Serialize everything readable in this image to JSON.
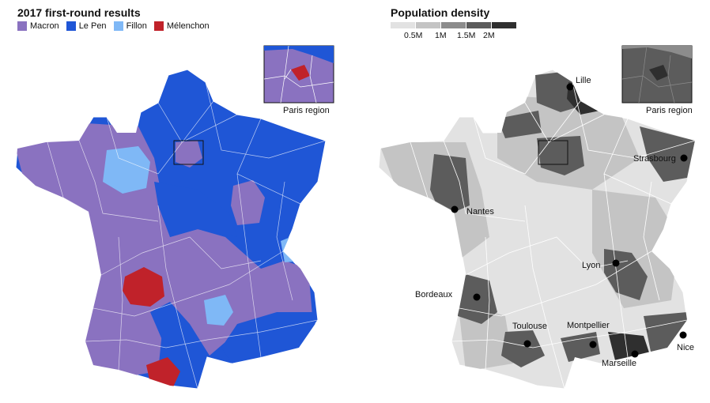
{
  "left": {
    "title": "2017 first-round results",
    "legend": [
      {
        "label": "Macron",
        "color": "#8a72c0"
      },
      {
        "label": "Le Pen",
        "color": "#1f56d6"
      },
      {
        "label": "Fillon",
        "color": "#7fb8f6"
      },
      {
        "label": "Mélenchon",
        "color": "#c0222a"
      }
    ],
    "inset_label": "Paris region"
  },
  "right": {
    "title": "Population density",
    "density_scale": [
      "#e2e2e2",
      "#c4c4c4",
      "#8c8c8c",
      "#5c5c5c",
      "#2f2f2f"
    ],
    "density_labels": [
      "0.5M",
      "1M",
      "1.5M",
      "2M"
    ],
    "inset_label": "Paris region",
    "cities": [
      "Lille",
      "Strasbourg",
      "Nantes",
      "Lyon",
      "Bordeaux",
      "Toulouse",
      "Montpellier",
      "Nice",
      "Marseille"
    ]
  }
}
